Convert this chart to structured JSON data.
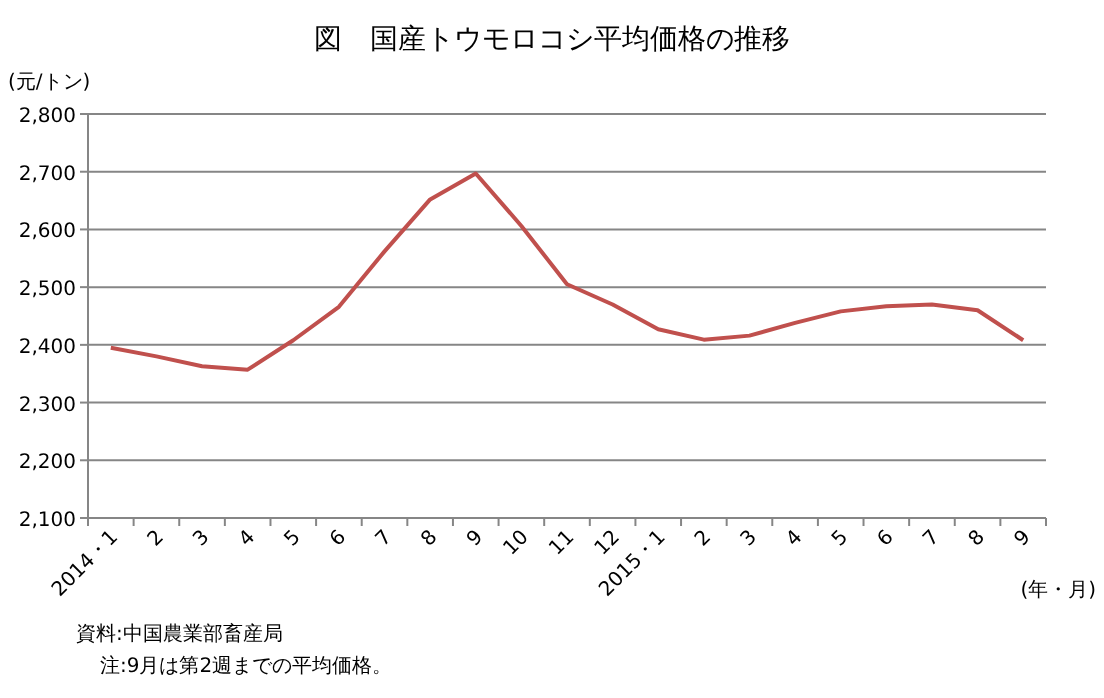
{
  "chart_data": {
    "type": "line",
    "title": "図　国産トウモロコシ平均価格の推移",
    "ylabel": "(元/トン)",
    "xlabel": "(年・月)",
    "categories": [
      "2014・1",
      "2",
      "3",
      "4",
      "5",
      "6",
      "7",
      "8",
      "9",
      "10",
      "11",
      "12",
      "2015・1",
      "2",
      "3",
      "4",
      "5",
      "6",
      "7",
      "8",
      "9"
    ],
    "series": [
      {
        "color": "#c0504d",
        "values": [
          2395,
          2380,
          2363,
          2357,
          2408,
          2466,
          2562,
          2652,
          2697,
          2606,
          2505,
          2470,
          2427,
          2409,
          2416,
          2438,
          2458,
          2467,
          2470,
          2460,
          2408
        ]
      }
    ],
    "ylim": [
      2100,
      2800
    ],
    "yticks": [
      {
        "value": 2100,
        "label": "2,100"
      },
      {
        "value": 2200,
        "label": "2,200"
      },
      {
        "value": 2300,
        "label": "2,300"
      },
      {
        "value": 2400,
        "label": "2,400"
      },
      {
        "value": 2500,
        "label": "2,500"
      },
      {
        "value": 2600,
        "label": "2,600"
      },
      {
        "value": 2700,
        "label": "2,700"
      },
      {
        "value": 2800,
        "label": "2,800"
      }
    ],
    "grid": "y",
    "marker": "none",
    "line_style": "solid",
    "annotations": [
      "資料:中国農業部畜産局",
      "注:9月は第2週までの平均価格。"
    ]
  }
}
